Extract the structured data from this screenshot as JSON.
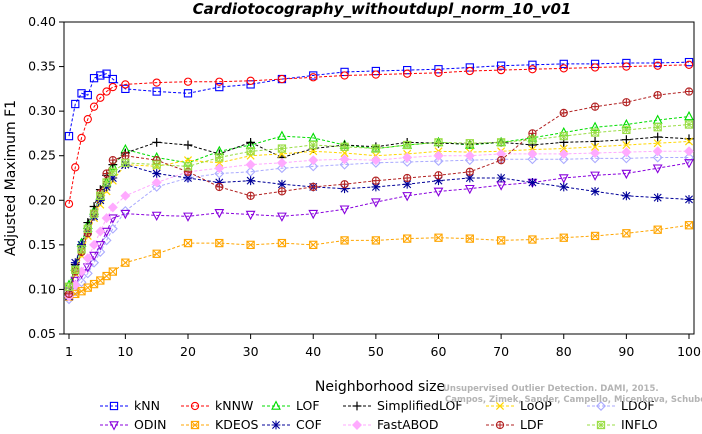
{
  "chart_data": {
    "type": "line",
    "title": "Cardiotocography_withoutdupl_norm_10_v01",
    "xlabel": "Neighborhood size",
    "ylabel": "Adjusted Maximum F1",
    "xlim": [
      1,
      100
    ],
    "ylim": [
      0.05,
      0.4
    ],
    "xticks": [
      "1",
      "10",
      "20",
      "30",
      "40",
      "50",
      "60",
      "70",
      "80",
      "90",
      "100"
    ],
    "yticks": [
      "0.05",
      "0.10",
      "0.15",
      "0.20",
      "0.25",
      "0.30",
      "0.35",
      "0.40"
    ],
    "grid": false,
    "legend_position": "bottom",
    "x": [
      1,
      2,
      3,
      4,
      5,
      6,
      7,
      8,
      10,
      15,
      20,
      25,
      30,
      35,
      40,
      45,
      50,
      55,
      60,
      65,
      70,
      75,
      80,
      85,
      90,
      95,
      100
    ],
    "series": [
      {
        "name": "kNN",
        "color": "#0000ff",
        "marker": "square",
        "values": [
          0.272,
          0.308,
          0.32,
          0.318,
          0.337,
          0.34,
          0.342,
          0.336,
          0.325,
          0.322,
          0.32,
          0.327,
          0.33,
          0.336,
          0.34,
          0.344,
          0.345,
          0.346,
          0.347,
          0.349,
          0.351,
          0.352,
          0.353,
          0.353,
          0.354,
          0.354,
          0.355
        ]
      },
      {
        "name": "kNNW",
        "color": "#ff0000",
        "marker": "circle",
        "values": [
          0.196,
          0.237,
          0.27,
          0.291,
          0.305,
          0.315,
          0.322,
          0.327,
          0.33,
          0.332,
          0.333,
          0.333,
          0.334,
          0.336,
          0.338,
          0.34,
          0.341,
          0.342,
          0.343,
          0.345,
          0.346,
          0.347,
          0.348,
          0.349,
          0.35,
          0.351,
          0.352
        ]
      },
      {
        "name": "LOF",
        "color": "#00dd00",
        "marker": "triangle",
        "values": [
          0.105,
          0.125,
          0.152,
          0.172,
          0.188,
          0.205,
          0.22,
          0.238,
          0.257,
          0.248,
          0.242,
          0.255,
          0.262,
          0.272,
          0.27,
          0.262,
          0.258,
          0.262,
          0.265,
          0.262,
          0.265,
          0.27,
          0.276,
          0.282,
          0.285,
          0.29,
          0.294
        ]
      },
      {
        "name": "SimplifiedLOF",
        "color": "#000000",
        "marker": "plus",
        "values": [
          0.095,
          0.128,
          0.15,
          0.175,
          0.193,
          0.212,
          0.228,
          0.24,
          0.253,
          0.265,
          0.262,
          0.252,
          0.265,
          0.248,
          0.258,
          0.262,
          0.26,
          0.265,
          0.264,
          0.263,
          0.265,
          0.262,
          0.265,
          0.266,
          0.268,
          0.271,
          0.269
        ]
      },
      {
        "name": "LoOP",
        "color": "#ffd700",
        "marker": "x",
        "values": [
          0.092,
          0.118,
          0.138,
          0.16,
          0.18,
          0.195,
          0.21,
          0.222,
          0.24,
          0.238,
          0.245,
          0.242,
          0.25,
          0.252,
          0.255,
          0.253,
          0.25,
          0.252,
          0.255,
          0.254,
          0.255,
          0.257,
          0.258,
          0.26,
          0.262,
          0.264,
          0.266
        ]
      },
      {
        "name": "LDOF",
        "color": "#aaaaff",
        "marker": "diamond",
        "values": [
          0.089,
          0.098,
          0.108,
          0.118,
          0.13,
          0.142,
          0.155,
          0.168,
          0.188,
          0.215,
          0.225,
          0.23,
          0.232,
          0.236,
          0.238,
          0.24,
          0.242,
          0.243,
          0.244,
          0.245,
          0.246,
          0.246,
          0.246,
          0.247,
          0.247,
          0.248,
          0.248
        ]
      },
      {
        "name": "ODIN",
        "color": "#8800dd",
        "marker": "triangle-down",
        "values": [
          0.098,
          0.11,
          0.118,
          0.125,
          0.138,
          0.15,
          0.165,
          0.18,
          0.185,
          0.183,
          0.182,
          0.186,
          0.184,
          0.182,
          0.185,
          0.19,
          0.198,
          0.205,
          0.21,
          0.213,
          0.217,
          0.22,
          0.225,
          0.228,
          0.23,
          0.236,
          0.242
        ]
      },
      {
        "name": "KDEOS",
        "color": "#ffa500",
        "marker": "square-x",
        "values": [
          0.092,
          0.095,
          0.098,
          0.102,
          0.106,
          0.11,
          0.115,
          0.12,
          0.13,
          0.14,
          0.152,
          0.152,
          0.15,
          0.152,
          0.15,
          0.155,
          0.155,
          0.157,
          0.158,
          0.157,
          0.155,
          0.156,
          0.158,
          0.16,
          0.163,
          0.167,
          0.172
        ]
      },
      {
        "name": "COF",
        "color": "#000099",
        "marker": "asterisk",
        "values": [
          0.092,
          0.13,
          0.15,
          0.165,
          0.182,
          0.2,
          0.215,
          0.225,
          0.24,
          0.23,
          0.225,
          0.22,
          0.222,
          0.218,
          0.215,
          0.213,
          0.215,
          0.218,
          0.222,
          0.225,
          0.225,
          0.22,
          0.215,
          0.21,
          0.205,
          0.203,
          0.201
        ]
      },
      {
        "name": "FastABOD",
        "color": "#ffaaff",
        "marker": "diamond-filled",
        "values": [
          0.092,
          0.105,
          0.12,
          0.135,
          0.15,
          0.165,
          0.18,
          0.192,
          0.205,
          0.22,
          0.232,
          0.236,
          0.24,
          0.242,
          0.245,
          0.246,
          0.245,
          0.248,
          0.25,
          0.25,
          0.252,
          0.252,
          0.252,
          0.253,
          0.254,
          0.255,
          0.255
        ]
      },
      {
        "name": "LDF",
        "color": "#b22222",
        "marker": "circle-plus",
        "values": [
          0.095,
          0.12,
          0.142,
          0.163,
          0.185,
          0.208,
          0.23,
          0.245,
          0.25,
          0.245,
          0.232,
          0.215,
          0.205,
          0.21,
          0.215,
          0.218,
          0.222,
          0.225,
          0.228,
          0.232,
          0.245,
          0.275,
          0.298,
          0.305,
          0.31,
          0.318,
          0.322
        ]
      },
      {
        "name": "INFLO",
        "color": "#99dd44",
        "marker": "square-star",
        "values": [
          0.103,
          0.122,
          0.145,
          0.168,
          0.185,
          0.205,
          0.22,
          0.232,
          0.242,
          0.24,
          0.238,
          0.248,
          0.255,
          0.258,
          0.262,
          0.26,
          0.258,
          0.262,
          0.265,
          0.264,
          0.265,
          0.268,
          0.272,
          0.276,
          0.279,
          0.282,
          0.285
        ]
      }
    ]
  },
  "watermark": {
    "line1": "Unsupervised Outlier Detection. DAMI, 2015.",
    "line2": "Campos, Zimek, Sander, Campello, Micenkova, Schubert, Assent, Houle"
  }
}
